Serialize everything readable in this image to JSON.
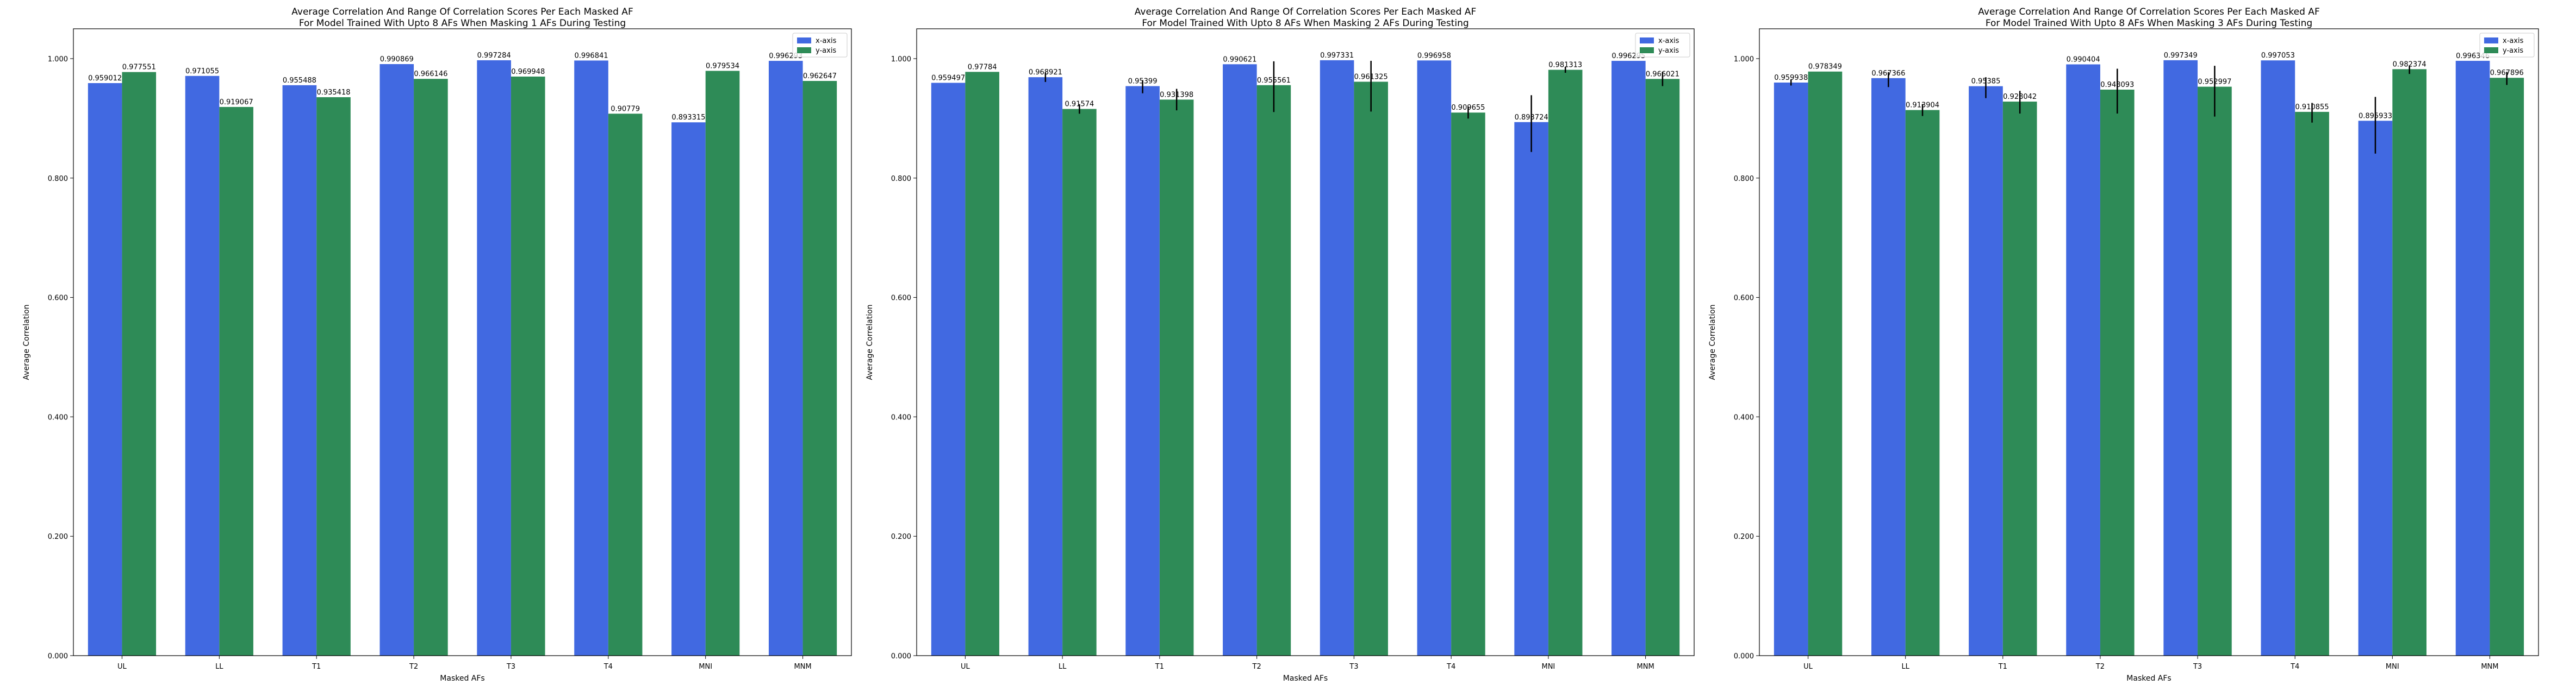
{
  "colors": {
    "x_axis": "#4169e1",
    "y_axis": "#2e8b57",
    "error_bar": "#000000"
  },
  "chart_data": [
    {
      "type": "bar",
      "title": "Average Correlation And Range Of Correlation Scores Per Each Masked AF\nFor Model Trained With Upto 8 AFs When Masking 1 AFs During Testing",
      "xlabel": "Masked AFs",
      "ylabel": "Average Correlation",
      "ylim": [
        0,
        1.05
      ],
      "yticks": [
        "0.000",
        "0.200",
        "0.400",
        "0.600",
        "0.800",
        "1.000"
      ],
      "legend_position": "top-right",
      "categories": [
        "UL",
        "LL",
        "T1",
        "T2",
        "T3",
        "T4",
        "MNI",
        "MNM"
      ],
      "series": [
        {
          "name": "x-axis",
          "values": [
            0.959012,
            0.971055,
            0.955488,
            0.990869,
            0.997284,
            0.996841,
            0.893315,
            0.996293
          ],
          "labels": [
            "0.959012",
            "0.971055",
            "0.955488",
            "0.990869",
            "0.997284",
            "0.996841",
            "0.893315",
            "0.996293"
          ]
        },
        {
          "name": "y-axis",
          "values": [
            0.977551,
            0.919067,
            0.935418,
            0.966146,
            0.969948,
            0.90779,
            0.979534,
            0.962647
          ],
          "labels": [
            "0.977551",
            "0.919067",
            "0.935418",
            "0.966146",
            "0.969948",
            "0.90779",
            "0.979534",
            "0.962647"
          ]
        }
      ]
    },
    {
      "type": "bar",
      "title": "Average Correlation And Range Of Correlation Scores Per Each Masked AF\nFor Model Trained With Upto 8 AFs When Masking 2 AFs During Testing",
      "xlabel": "Masked AFs",
      "ylabel": "Average Correlation",
      "ylim": [
        0,
        1.05
      ],
      "yticks": [
        "0.000",
        "0.200",
        "0.400",
        "0.600",
        "0.800",
        "1.000"
      ],
      "legend_position": "top-right",
      "categories": [
        "UL",
        "LL",
        "T1",
        "T2",
        "T3",
        "T4",
        "MNI",
        "MNM"
      ],
      "series": [
        {
          "name": "x-axis",
          "values": [
            0.959497,
            0.968921,
            0.95399,
            0.990621,
            0.997331,
            0.996958,
            0.893724,
            0.996295
          ],
          "labels": [
            "0.959497",
            "0.968921",
            "0.95399",
            "0.990621",
            "0.997331",
            "0.996958",
            "0.893724",
            "0.996295"
          ],
          "errors": [
            [
              0,
              0
            ],
            [
              0.008,
              0.008
            ],
            [
              0.012,
              0.01
            ],
            [
              0,
              0
            ],
            [
              0,
              0
            ],
            [
              0,
              0
            ],
            [
              0.05,
              0.045
            ],
            [
              0,
              0
            ]
          ]
        },
        {
          "name": "y-axis",
          "values": [
            0.97784,
            0.91574,
            0.931398,
            0.955561,
            0.961325,
            0.909655,
            0.981313,
            0.966021
          ],
          "labels": [
            "0.97784",
            "0.91574",
            "0.931398",
            "0.955561",
            "0.961325",
            "0.909655",
            "0.981313",
            "0.966021"
          ],
          "errors": [
            [
              0,
              0
            ],
            [
              0.008,
              0.008
            ],
            [
              0.018,
              0.018
            ],
            [
              0.045,
              0.04
            ],
            [
              0.05,
              0.035
            ],
            [
              0.01,
              0.01
            ],
            [
              0.005,
              0.005
            ],
            [
              0.012,
              0.012
            ]
          ]
        }
      ]
    },
    {
      "type": "bar",
      "title": "Average Correlation And Range Of Correlation Scores Per Each Masked AF\nFor Model Trained With Upto 8 AFs When Masking 3 AFs During Testing",
      "xlabel": "Masked AFs",
      "ylabel": "Average Correlation",
      "ylim": [
        0,
        1.05
      ],
      "yticks": [
        "0.000",
        "0.200",
        "0.400",
        "0.600",
        "0.800",
        "1.000"
      ],
      "legend_position": "top-right",
      "categories": [
        "UL",
        "LL",
        "T1",
        "T2",
        "T3",
        "T4",
        "MNI",
        "MNM"
      ],
      "series": [
        {
          "name": "x-axis",
          "values": [
            0.959938,
            0.967366,
            0.95385,
            0.990404,
            0.997349,
            0.997053,
            0.895933,
            0.996346
          ],
          "labels": [
            "0.959938",
            "0.967366",
            "0.95385",
            "0.990404",
            "0.997349",
            "0.997053",
            "0.895933",
            "0.996346"
          ],
          "errors": [
            [
              0.005,
              0.005
            ],
            [
              0.015,
              0.01
            ],
            [
              0.02,
              0.015
            ],
            [
              0,
              0
            ],
            [
              0,
              0
            ],
            [
              0,
              0
            ],
            [
              0.055,
              0.04
            ],
            [
              0,
              0
            ]
          ]
        },
        {
          "name": "y-axis",
          "values": [
            0.978349,
            0.913904,
            0.928042,
            0.948093,
            0.952997,
            0.910855,
            0.982374,
            0.967896
          ],
          "labels": [
            "0.978349",
            "0.913904",
            "0.928042",
            "0.948093",
            "0.952997",
            "0.910855",
            "0.982374",
            "0.967896"
          ],
          "errors": [
            [
              0,
              0
            ],
            [
              0.01,
              0.01
            ],
            [
              0.02,
              0.018
            ],
            [
              0.04,
              0.035
            ],
            [
              0.05,
              0.035
            ],
            [
              0.018,
              0.015
            ],
            [
              0.008,
              0.006
            ],
            [
              0.012,
              0.01
            ]
          ]
        }
      ]
    }
  ]
}
